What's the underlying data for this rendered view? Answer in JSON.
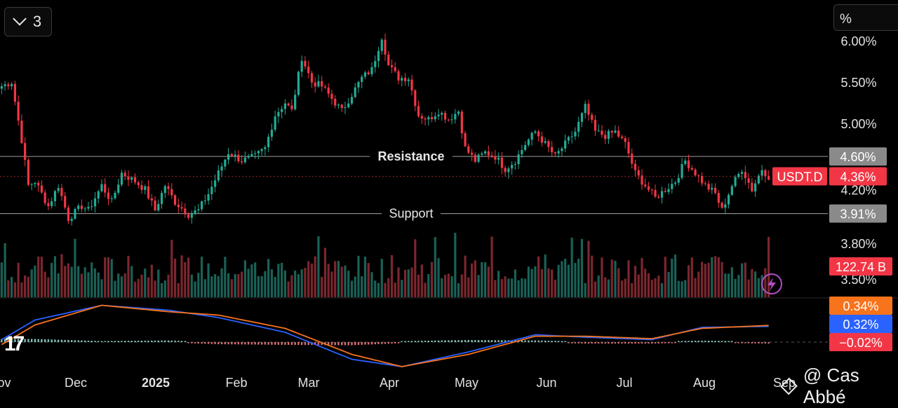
{
  "controls": {
    "collapse_count": "3",
    "scale_button": "%"
  },
  "watermark": "@ Cas Abbé",
  "chart_data": {
    "type": "candlestick",
    "symbol": "USDT.D",
    "y_axis": {
      "ticks": [
        "6.00%",
        "5.50%",
        "5.00%",
        "4.20%",
        "3.80%",
        "3.50%"
      ],
      "ylim": [
        3.45,
        6.25
      ]
    },
    "x_axis": {
      "ticks": [
        "ov",
        "Dec",
        "2025",
        "Feb",
        "Mar",
        "Apr",
        "May",
        "Jun",
        "Jul",
        "Aug",
        "Sep"
      ]
    },
    "levels": [
      {
        "label": "Resistance",
        "value": 4.6,
        "tag": "4.60%"
      },
      {
        "label": "Support",
        "value": 3.91,
        "tag": "3.91%"
      }
    ],
    "last_price": {
      "symbol": "USDT.D",
      "value": 4.36,
      "tag": "4.36%"
    },
    "volume_tag": "122.74 B",
    "price_path": [
      [
        0,
        5.45
      ],
      [
        3,
        5.5
      ],
      [
        6,
        4.8
      ],
      [
        8,
        4.25
      ],
      [
        10,
        4.3
      ],
      [
        14,
        4.0
      ],
      [
        17,
        4.25
      ],
      [
        20,
        3.85
      ],
      [
        24,
        4.0
      ],
      [
        26,
        3.95
      ],
      [
        30,
        4.25
      ],
      [
        33,
        4.05
      ],
      [
        36,
        4.4
      ],
      [
        40,
        4.3
      ],
      [
        43,
        4.2
      ],
      [
        46,
        3.95
      ],
      [
        49,
        4.25
      ],
      [
        52,
        4.05
      ],
      [
        56,
        3.9
      ],
      [
        59,
        3.95
      ],
      [
        62,
        4.15
      ],
      [
        65,
        4.4
      ],
      [
        68,
        4.65
      ],
      [
        72,
        4.55
      ],
      [
        76,
        4.6
      ],
      [
        79,
        4.7
      ],
      [
        82,
        5.1
      ],
      [
        85,
        5.25
      ],
      [
        87,
        5.15
      ],
      [
        90,
        5.8
      ],
      [
        93,
        5.5
      ],
      [
        96,
        5.45
      ],
      [
        99,
        5.3
      ],
      [
        102,
        5.15
      ],
      [
        105,
        5.35
      ],
      [
        108,
        5.55
      ],
      [
        111,
        5.65
      ],
      [
        114,
        6.05
      ],
      [
        116,
        5.7
      ],
      [
        119,
        5.55
      ],
      [
        122,
        5.55
      ],
      [
        125,
        5.1
      ],
      [
        128,
        5.05
      ],
      [
        131,
        5.15
      ],
      [
        134,
        5.05
      ],
      [
        137,
        5.15
      ],
      [
        139,
        4.7
      ],
      [
        142,
        4.55
      ],
      [
        145,
        4.65
      ],
      [
        148,
        4.6
      ],
      [
        151,
        4.45
      ],
      [
        154,
        4.55
      ],
      [
        157,
        4.75
      ],
      [
        160,
        4.9
      ],
      [
        163,
        4.75
      ],
      [
        166,
        4.6
      ],
      [
        169,
        4.75
      ],
      [
        172,
        4.9
      ],
      [
        175,
        5.2
      ],
      [
        178,
        4.9
      ],
      [
        181,
        4.85
      ],
      [
        184,
        4.9
      ],
      [
        187,
        4.75
      ],
      [
        190,
        4.4
      ],
      [
        193,
        4.25
      ],
      [
        196,
        4.1
      ],
      [
        199,
        4.2
      ],
      [
        202,
        4.3
      ],
      [
        205,
        4.55
      ],
      [
        208,
        4.4
      ],
      [
        211,
        4.25
      ],
      [
        214,
        4.15
      ],
      [
        216,
        3.95
      ],
      [
        219,
        4.25
      ],
      [
        222,
        4.45
      ],
      [
        225,
        4.2
      ],
      [
        228,
        4.45
      ],
      [
        230,
        4.36
      ]
    ],
    "macd_path": [
      [
        0,
        0.05
      ],
      [
        10,
        0.45
      ],
      [
        30,
        0.75
      ],
      [
        50,
        0.65
      ],
      [
        65,
        0.5
      ],
      [
        85,
        0.2
      ],
      [
        105,
        -0.35
      ],
      [
        120,
        -0.5
      ],
      [
        140,
        -0.2
      ],
      [
        160,
        0.15
      ],
      [
        175,
        0.1
      ],
      [
        195,
        0.05
      ],
      [
        210,
        0.3
      ],
      [
        230,
        0.32
      ]
    ],
    "signal_path": [
      [
        0,
        -0.05
      ],
      [
        10,
        0.35
      ],
      [
        30,
        0.75
      ],
      [
        50,
        0.62
      ],
      [
        65,
        0.55
      ],
      [
        85,
        0.28
      ],
      [
        105,
        -0.25
      ],
      [
        120,
        -0.5
      ],
      [
        140,
        -0.25
      ],
      [
        160,
        0.12
      ],
      [
        175,
        0.12
      ],
      [
        195,
        0.07
      ],
      [
        210,
        0.28
      ],
      [
        230,
        0.34
      ]
    ],
    "indicator_tags": [
      {
        "tag": "0.34%",
        "color": "#f7731c"
      },
      {
        "tag": "0.32%",
        "color": "#2962ff"
      },
      {
        "tag": "−0.02%",
        "color": "#f23645"
      }
    ],
    "colors": {
      "up": "#22ab94",
      "down": "#f23645",
      "macd": "#2962ff",
      "signal": "#f7731c",
      "level": "#8a8a8a"
    }
  }
}
